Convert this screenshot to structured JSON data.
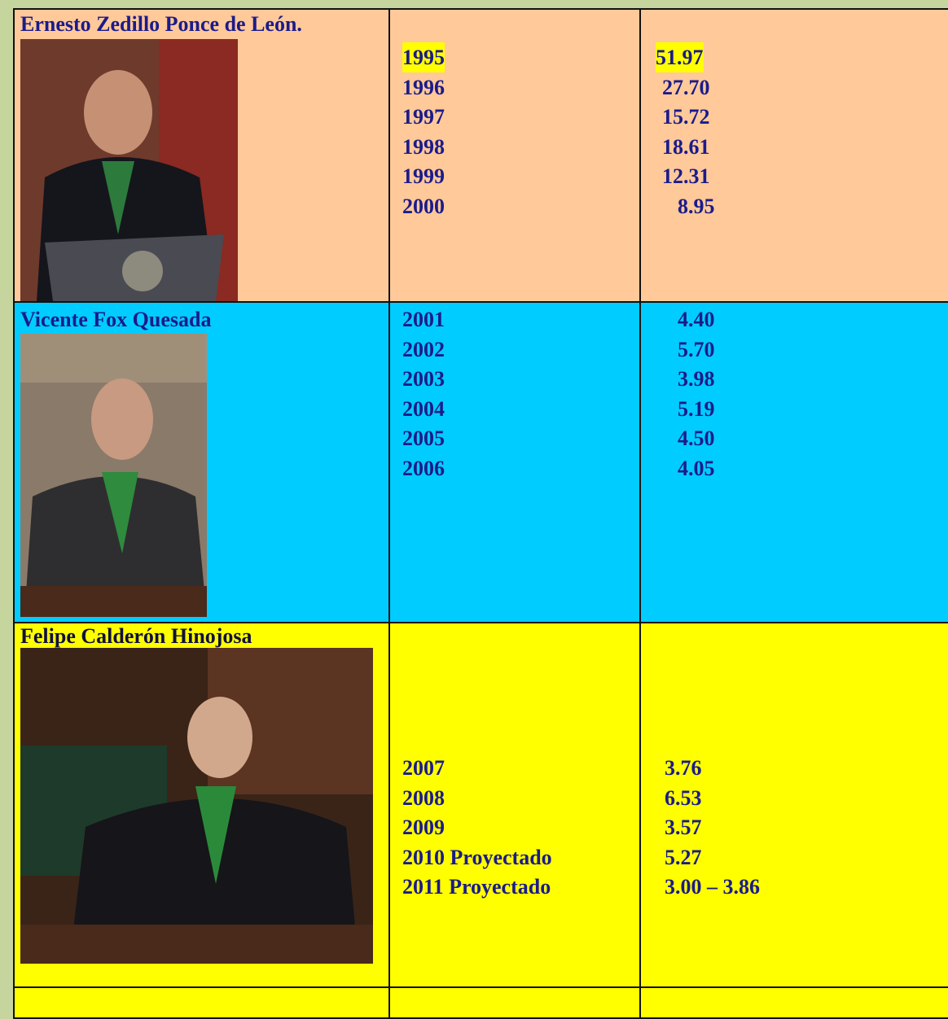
{
  "table": {
    "rows": [
      {
        "name": "Ernesto Zedillo Ponce de León.",
        "years": [
          "1995",
          "1996",
          "1997",
          "1998",
          "1999",
          "2000"
        ],
        "values": [
          "51.97",
          "27.70",
          "15.72",
          "18.61",
          "12.31",
          "8.95"
        ]
      },
      {
        "name": "Vicente Fox Quesada",
        "years": [
          "2001",
          "2002",
          "2003",
          "2004",
          "2005",
          "2006"
        ],
        "values": [
          "4.40",
          "5.70",
          "3.98",
          "5.19",
          "4.50",
          "4.05"
        ]
      },
      {
        "name": "Felipe Calderón Hinojosa",
        "years": [
          "2007",
          "2008",
          "2009",
          "2010 Proyectado",
          "2011 Proyectado"
        ],
        "values": [
          "3.76",
          "6.53",
          "3.57",
          "5.27",
          "3.00 – 3.86"
        ]
      }
    ]
  }
}
